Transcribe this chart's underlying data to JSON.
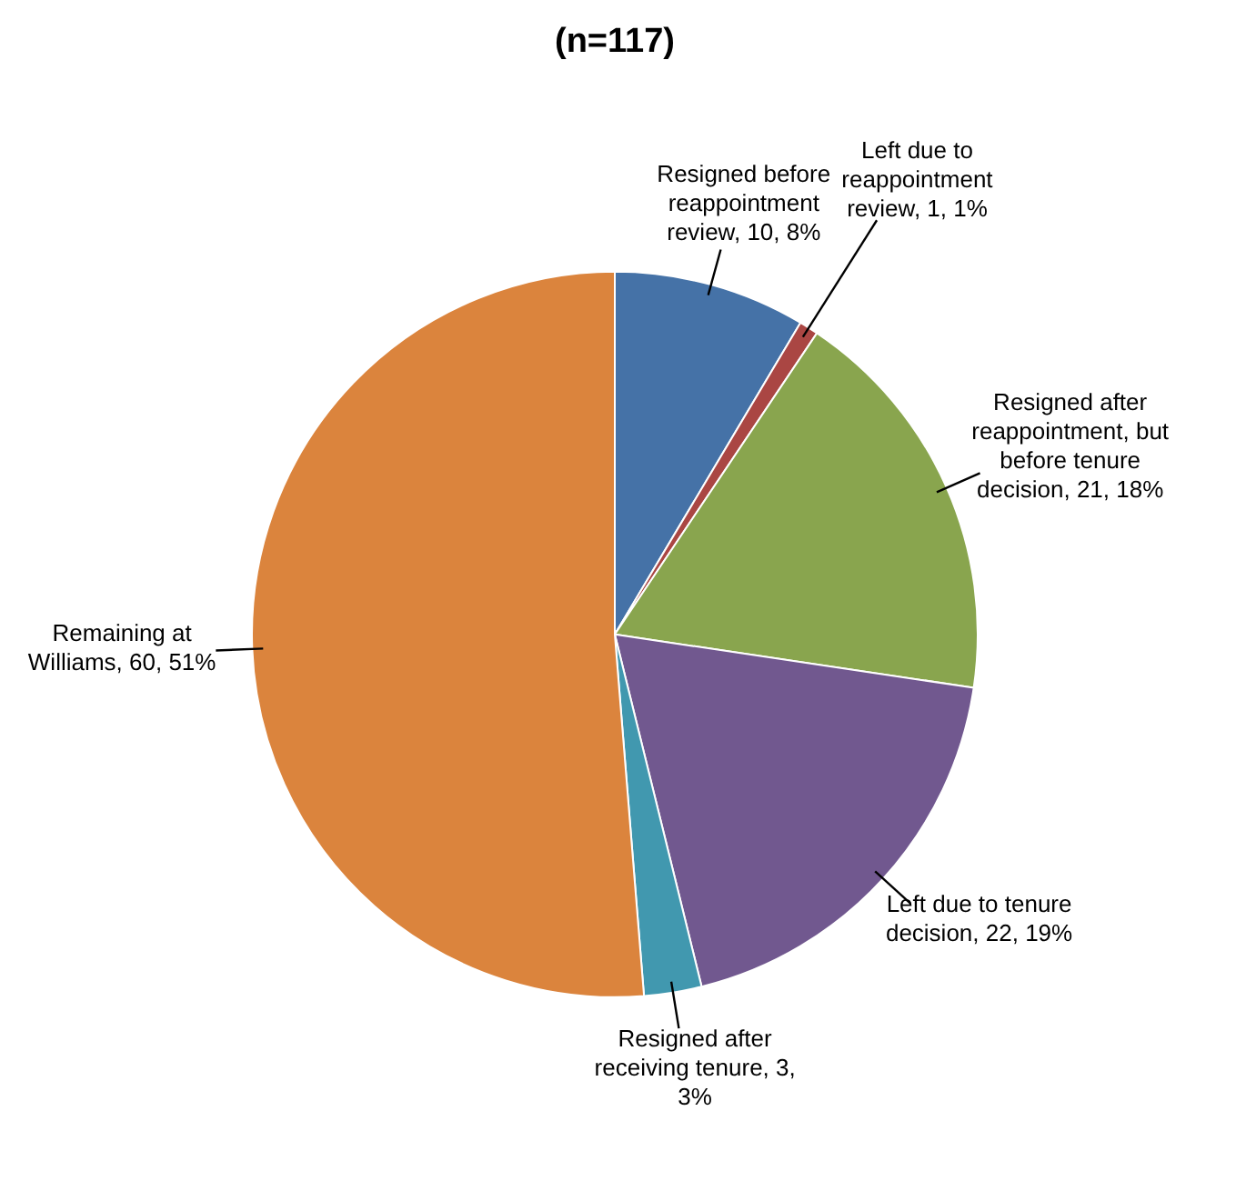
{
  "chart_data": {
    "type": "pie",
    "title": "(n=117)",
    "categories": [
      "Resigned before reappointment review",
      "Left due to reappointment review",
      "Resigned after reappointment, but before tenure decision",
      "Left due to tenure decision",
      "Resigned after receiving tenure",
      "Remaining at Williams"
    ],
    "values": [
      10,
      1,
      21,
      22,
      3,
      60
    ],
    "value_labels": [
      "10, 8%",
      "1, 1%",
      "21, 18%",
      "22, 19%",
      "3, 3%",
      "60, 51%"
    ],
    "colors": [
      "#4572a7",
      "#aa4643",
      "#89a54e",
      "#71588f",
      "#4198af",
      "#db843d"
    ],
    "legend": false
  }
}
